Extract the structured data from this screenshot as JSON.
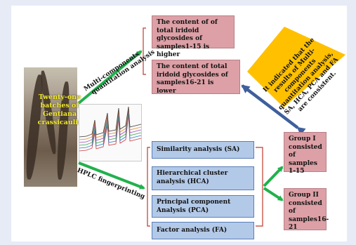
{
  "source_panel": {
    "label_lines": [
      "Twenty-one",
      "batches of",
      "Gentiana",
      "crassicaulis"
    ]
  },
  "branches": {
    "multi_components_lines": [
      "Multi-components",
      "quantitation analysis"
    ],
    "hplc_label": "HPLC fingerprinting"
  },
  "quantitation_results": [
    {
      "text": "The content of of total iridoid glycosides of samples1-15  is higher"
    },
    {
      "text": "The content of total iridoid glycosides of samples16-21 is lower"
    }
  ],
  "conclusion_note": {
    "lines": [
      "It indicated that the",
      "results of Multi-",
      "components",
      "quantitation analysis,",
      "SA, HCA, PCA and FA",
      "are consistent."
    ]
  },
  "fingerprint_methods": [
    {
      "text": "Similarity analysis (SA)"
    },
    {
      "text": "Hierarchical cluster analysis (HCA)"
    },
    {
      "text": "Principal component Analysis (PCA)"
    },
    {
      "text": "Factor analysis (FA)"
    }
  ],
  "groups": [
    {
      "text": "Group I consisted of samples 1-15"
    },
    {
      "text": "Group II consisted of samples16-21"
    }
  ],
  "colors": {
    "page_background": "#e6ebf6",
    "pink_box": "#dca0a6",
    "blue_box": "#b3c9e8",
    "yellow_note": "#ffc000",
    "green_arrow": "#22b14c",
    "navy_arrow": "#3f5f9d",
    "bracket_red": "#c0392b",
    "photo_label": "#f0ea2c"
  }
}
